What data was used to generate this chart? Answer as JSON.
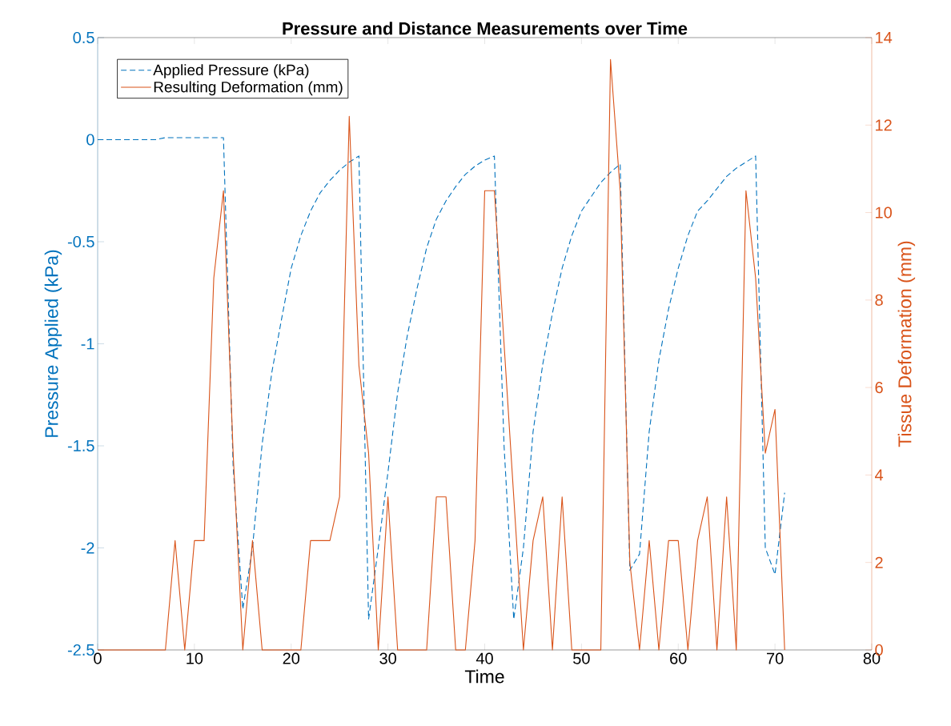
{
  "chart_data": {
    "type": "line",
    "title": "Pressure and Distance Measurements over Time",
    "xlabel": "Time",
    "ylabel": "Pressure Applied (kPa)",
    "y2label": "Tissue Deformation (mm)",
    "x": [
      0,
      1,
      2,
      3,
      4,
      5,
      6,
      7,
      8,
      9,
      10,
      11,
      12,
      13,
      14,
      15,
      16,
      17,
      18,
      19,
      20,
      21,
      22,
      23,
      24,
      25,
      26,
      27,
      28,
      29,
      30,
      31,
      32,
      33,
      34,
      35,
      36,
      37,
      38,
      39,
      40,
      41,
      42,
      43,
      44,
      45,
      46,
      47,
      48,
      49,
      50,
      51,
      52,
      53,
      54,
      55,
      56,
      57,
      58,
      59,
      60,
      61,
      62,
      63,
      64,
      65,
      66,
      67,
      68,
      69,
      70,
      71
    ],
    "series": [
      {
        "name": "Applied Pressure (kPa)",
        "color": "#0072bd",
        "line_style": "dashed",
        "values": [
          0,
          0,
          0,
          0,
          0,
          0,
          0,
          0.01,
          0.01,
          0.01,
          0.01,
          0.01,
          0.01,
          0.01,
          -1.6,
          -2.3,
          -2.0,
          -1.49,
          -1.14,
          -0.88,
          -0.63,
          -0.47,
          -0.35,
          -0.26,
          -0.2,
          -0.15,
          -0.11,
          -0.08,
          -2.35,
          -2.0,
          -1.63,
          -1.24,
          -0.96,
          -0.73,
          -0.53,
          -0.39,
          -0.3,
          -0.23,
          -0.17,
          -0.13,
          -0.1,
          -0.08,
          -1.5,
          -2.35,
          -2.0,
          -1.43,
          -1.1,
          -0.85,
          -0.63,
          -0.47,
          -0.35,
          -0.28,
          -0.21,
          -0.16,
          -0.12,
          -2.11,
          -2.03,
          -1.43,
          -1.08,
          -0.83,
          -0.63,
          -0.47,
          -0.35,
          -0.3,
          -0.24,
          -0.18,
          -0.14,
          -0.11,
          -0.08,
          -2.0,
          -2.13,
          -1.73
        ]
      },
      {
        "name": "Resulting Deformation (mm)",
        "color": "#d95319",
        "line_style": "solid",
        "axis": "y2",
        "values": [
          0,
          0,
          0,
          0,
          0,
          0,
          0,
          0,
          2.5,
          0,
          2.5,
          2.5,
          8.5,
          10.5,
          4.5,
          0,
          2.5,
          0,
          0,
          0,
          0,
          0,
          2.5,
          2.5,
          2.5,
          3.5,
          12.2,
          6.5,
          4.5,
          0,
          3.5,
          0,
          0,
          0,
          0,
          3.5,
          3.5,
          0,
          0,
          2.5,
          10.5,
          10.5,
          7,
          3.5,
          0,
          2.5,
          3.5,
          0,
          3.5,
          0,
          0,
          0,
          0,
          13.5,
          10.5,
          2,
          0,
          2.5,
          0,
          2.5,
          2.5,
          0,
          2.5,
          3.5,
          0,
          3.5,
          0,
          10.5,
          8.5,
          4.5,
          5.5,
          0
        ]
      }
    ],
    "xlim": [
      0,
      80
    ],
    "xticks": [
      0,
      10,
      20,
      30,
      40,
      50,
      60,
      70,
      80
    ],
    "ylim": [
      -2.5,
      0.5
    ],
    "yticks": [
      -2.5,
      -2,
      -1.5,
      -1,
      -0.5,
      0,
      0.5
    ],
    "y2lim": [
      0,
      14
    ],
    "y2ticks": [
      0,
      2,
      4,
      6,
      8,
      10,
      12,
      14
    ],
    "legend": "top left",
    "grid": false,
    "marker": "none"
  }
}
